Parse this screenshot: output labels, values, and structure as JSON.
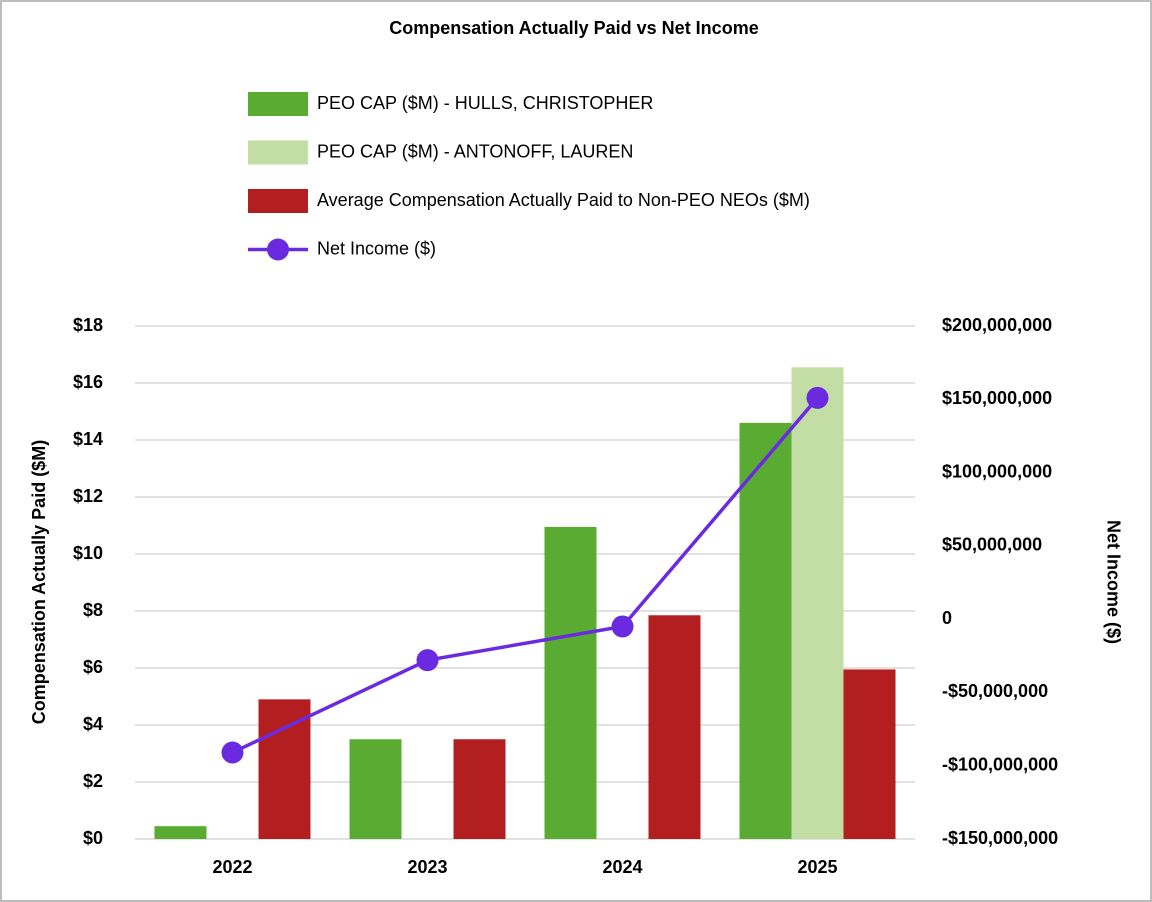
{
  "chart_data": {
    "type": "bar",
    "title": "Compensation Actually Paid vs Net Income",
    "y_label": "Compensation Actually Paid ($M)",
    "y2_label": "Net Income ($)",
    "categories": [
      "2022",
      "2023",
      "2024",
      "2025"
    ],
    "series": [
      {
        "name": "PEO CAP ($M) - HULLS, CHRISTOPHER",
        "color": "#5aab32",
        "type": "bar",
        "values": [
          0.45,
          3.5,
          10.95,
          14.6
        ]
      },
      {
        "name": "PEO CAP ($M) - ANTONOFF, LAUREN",
        "color": "#c3dea5",
        "type": "bar",
        "values": [
          null,
          null,
          null,
          16.55
        ]
      },
      {
        "name": "Average Compensation Actually Paid to Non-PEO NEOs ($M)",
        "color": "#b31f20",
        "type": "bar",
        "values": [
          4.9,
          3.5,
          7.85,
          5.95
        ]
      },
      {
        "name": "Net Income ($)",
        "color": "#6a2be0",
        "type": "line",
        "axis": "y2",
        "values": [
          -91000000,
          -28000000,
          -5000000,
          151000000
        ]
      }
    ],
    "ylim": [
      0,
      18
    ],
    "yticks": [
      {
        "value": 0,
        "label": "$0"
      },
      {
        "value": 2,
        "label": "$2"
      },
      {
        "value": 4,
        "label": "$4"
      },
      {
        "value": 6,
        "label": "$6"
      },
      {
        "value": 8,
        "label": "$8"
      },
      {
        "value": 10,
        "label": "$10"
      },
      {
        "value": 12,
        "label": "$12"
      },
      {
        "value": 14,
        "label": "$14"
      },
      {
        "value": 16,
        "label": "$16"
      },
      {
        "value": 18,
        "label": "$18"
      }
    ],
    "y2lim": [
      -150000000,
      200000000
    ],
    "y2ticks": [
      {
        "value": -150000000,
        "label": "-$150,000,000"
      },
      {
        "value": -100000000,
        "label": "-$100,000,000"
      },
      {
        "value": -50000000,
        "label": "-$50,000,000"
      },
      0,
      {
        "value": 50000000,
        "label": "$50,000,000"
      },
      {
        "value": 100000000,
        "label": "$100,000,000"
      },
      {
        "value": 150000000,
        "label": "$150,000,000"
      },
      {
        "value": 200000000,
        "label": "$200,000,000"
      }
    ],
    "grid": true
  }
}
